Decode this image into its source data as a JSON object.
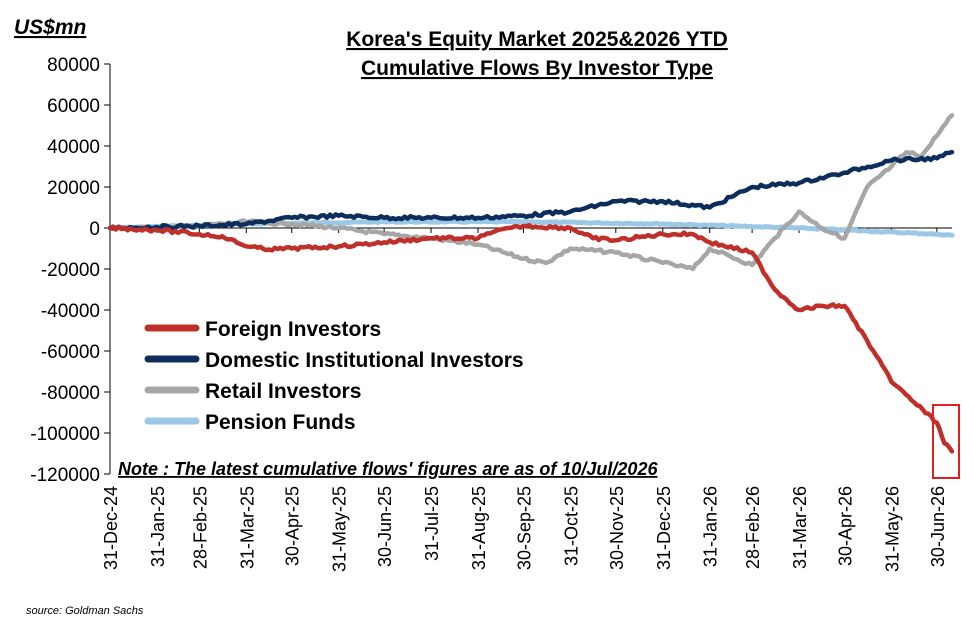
{
  "chart_data": {
    "type": "line",
    "title_line1": "Korea's Equity  Market 2025&2026  YTD",
    "title_line2": "Cumulative Flows By Investor Type",
    "ylabel": "US$mn",
    "ylim": [
      -120000,
      80000
    ],
    "yticks": [
      80000,
      60000,
      40000,
      20000,
      0,
      -20000,
      -40000,
      -60000,
      -80000,
      -100000,
      -120000
    ],
    "xticks": [
      "31-Dec-24",
      "31-Jan-25",
      "28-Feb-25",
      "31-Mar-25",
      "30-Apr-25",
      "31-May-25",
      "30-Jun-25",
      "31-Jul-25",
      "31-Aug-25",
      "30-Sep-25",
      "31-Oct-25",
      "30-Nov-25",
      "31-Dec-25",
      "31-Jan-26",
      "28-Feb-26",
      "31-Mar-26",
      "30-Apr-26",
      "31-May-26",
      "30-Jun-26"
    ],
    "grid": false,
    "legend_position": "bottom-left",
    "note": "Note : The latest cumulative  flows' figures are as of 10/Jul/2026",
    "source": "source: Goldman Sachs",
    "series": [
      {
        "name": "Foreign Investors",
        "color": "#c0302a",
        "points": [
          [
            "31-Dec-24",
            0
          ],
          [
            "31-Jan-25",
            -1000
          ],
          [
            "28-Feb-25",
            -3000
          ],
          [
            "15-Mar-25",
            -4000
          ],
          [
            "31-Mar-25",
            -9000
          ],
          [
            "15-Apr-25",
            -10500
          ],
          [
            "30-Apr-25",
            -10000
          ],
          [
            "31-May-25",
            -9000
          ],
          [
            "30-Jun-25",
            -7000
          ],
          [
            "31-Jul-25",
            -5000
          ],
          [
            "31-Aug-25",
            -5000
          ],
          [
            "10-Sep-25",
            -2000
          ],
          [
            "30-Sep-25",
            1000
          ],
          [
            "31-Oct-25",
            0
          ],
          [
            "15-Nov-25",
            -5000
          ],
          [
            "30-Nov-25",
            -6000
          ],
          [
            "31-Dec-25",
            -3000
          ],
          [
            "20-Jan-26",
            -3000
          ],
          [
            "31-Jan-26",
            -7000
          ],
          [
            "28-Feb-26",
            -12000
          ],
          [
            "15-Mar-26",
            -30000
          ],
          [
            "31-Mar-26",
            -40000
          ],
          [
            "15-Apr-26",
            -38000
          ],
          [
            "30-Apr-26",
            -38000
          ],
          [
            "15-May-26",
            -55000
          ],
          [
            "31-May-26",
            -75000
          ],
          [
            "15-Jun-26",
            -85000
          ],
          [
            "30-Jun-26",
            -95000
          ],
          [
            "05-Jul-26",
            -105000
          ],
          [
            "10-Jul-26",
            -109000
          ]
        ]
      },
      {
        "name": "Domestic Institutional Investors",
        "color": "#0d2d5c",
        "points": [
          [
            "31-Dec-24",
            0
          ],
          [
            "31-Jan-25",
            500
          ],
          [
            "28-Feb-25",
            1000
          ],
          [
            "31-Mar-25",
            2000
          ],
          [
            "30-Apr-25",
            5000
          ],
          [
            "31-May-25",
            6000
          ],
          [
            "30-Jun-25",
            5000
          ],
          [
            "31-Jul-25",
            5000
          ],
          [
            "31-Aug-25",
            5000
          ],
          [
            "30-Sep-25",
            6000
          ],
          [
            "31-Oct-25",
            8000
          ],
          [
            "30-Nov-25",
            13000
          ],
          [
            "31-Dec-25",
            13000
          ],
          [
            "31-Jan-26",
            10000
          ],
          [
            "28-Feb-26",
            20000
          ],
          [
            "31-Mar-26",
            22000
          ],
          [
            "30-Apr-26",
            27000
          ],
          [
            "31-May-26",
            33000
          ],
          [
            "30-Jun-26",
            34000
          ],
          [
            "10-Jul-26",
            37000
          ]
        ]
      },
      {
        "name": "Retail Investors",
        "color": "#a6a6a6",
        "points": [
          [
            "31-Dec-24",
            0
          ],
          [
            "31-Jan-25",
            0
          ],
          [
            "28-Feb-25",
            1000
          ],
          [
            "31-Mar-25",
            3000
          ],
          [
            "30-Apr-25",
            2000
          ],
          [
            "31-May-25",
            0
          ],
          [
            "30-Jun-25",
            -3000
          ],
          [
            "31-Jul-25",
            -5000
          ],
          [
            "31-Aug-25",
            -8000
          ],
          [
            "30-Sep-25",
            -15000
          ],
          [
            "15-Oct-25",
            -17000
          ],
          [
            "31-Oct-25",
            -10000
          ],
          [
            "30-Nov-25",
            -12000
          ],
          [
            "31-Dec-25",
            -17000
          ],
          [
            "20-Jan-26",
            -20000
          ],
          [
            "31-Jan-26",
            -10000
          ],
          [
            "28-Feb-26",
            -18000
          ],
          [
            "15-Mar-26",
            -5000
          ],
          [
            "31-Mar-26",
            8000
          ],
          [
            "15-Apr-26",
            0
          ],
          [
            "30-Apr-26",
            -5000
          ],
          [
            "15-May-26",
            20000
          ],
          [
            "31-May-26",
            30000
          ],
          [
            "10-Jun-26",
            37000
          ],
          [
            "20-Jun-26",
            35000
          ],
          [
            "30-Jun-26",
            45000
          ],
          [
            "10-Jul-26",
            55000
          ]
        ]
      },
      {
        "name": "Pension Funds",
        "color": "#9cc8e8",
        "points": [
          [
            "31-Dec-24",
            0
          ],
          [
            "31-Mar-25",
            2000
          ],
          [
            "30-Jun-25",
            3000
          ],
          [
            "30-Sep-25",
            3000
          ],
          [
            "31-Dec-25",
            2000
          ],
          [
            "31-Mar-26",
            0
          ],
          [
            "30-Jun-26",
            -3000
          ],
          [
            "10-Jul-26",
            -3500
          ]
        ]
      }
    ]
  }
}
